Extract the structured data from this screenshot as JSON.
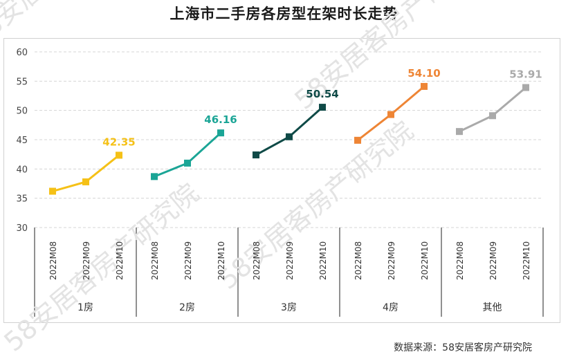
{
  "chart_data": {
    "type": "line",
    "title": "上海市二手房各房型在架时长走势",
    "ylim": [
      30,
      60
    ],
    "yticks": [
      30,
      35,
      40,
      45,
      50,
      55,
      60
    ],
    "categories": [
      "2022M08",
      "2022M09",
      "2022M10"
    ],
    "groups": [
      {
        "name": "1房",
        "color": "#F5C117",
        "values": [
          36.2,
          37.8,
          42.35
        ],
        "last_label": "42.35"
      },
      {
        "name": "2房",
        "color": "#1BA596",
        "values": [
          38.7,
          41.0,
          46.16
        ],
        "last_label": "46.16"
      },
      {
        "name": "3房",
        "color": "#0F4A47",
        "values": [
          42.4,
          45.5,
          50.54
        ],
        "last_label": "50.54"
      },
      {
        "name": "4房",
        "color": "#EE8535",
        "values": [
          44.9,
          49.3,
          54.1
        ],
        "last_label": "54.10"
      },
      {
        "name": "其他",
        "color": "#AAAAAA",
        "values": [
          46.4,
          49.1,
          53.91
        ],
        "last_label": "53.91"
      }
    ]
  },
  "source": "数据来源：58安居客房产研究院",
  "watermark": "58安居客房产研究院",
  "header_fragment": "58安居客房产研究院"
}
